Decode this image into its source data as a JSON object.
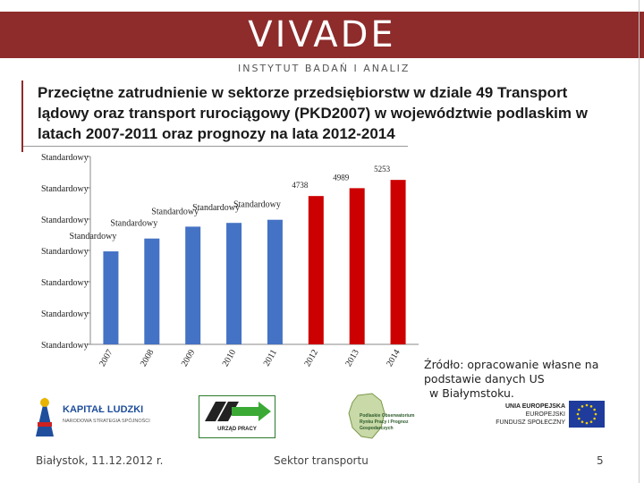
{
  "header": {
    "brand": "VIVADE",
    "tagline": "INSTYTUT BADAŃ I ANALIZ"
  },
  "slide_title": "Przeciętne zatrudnienie w sektorze przedsiębiorstw w dziale 49 Transport lądowy oraz transport rurociągowy (PKD2007) w województwie podlaskim w latach 2007-2011 oraz prognozy na lata 2012-2014",
  "chart_data": {
    "type": "bar",
    "categories": [
      "2007",
      "2008",
      "2009",
      "2010",
      "2011",
      "2012",
      "2013",
      "2014"
    ],
    "values": [
      2970,
      3380,
      3760,
      3880,
      3980,
      4738,
      4989,
      5253
    ],
    "data_labels": [
      "Standardowy",
      "Standardowy",
      "Standardowy",
      "Standardowy",
      "Standardowy",
      "4738",
      "4989",
      "5253"
    ],
    "y_tick_labels": [
      "Standardowy",
      "Standardowy",
      "Standardowy",
      "Standardowy",
      "Standardowy",
      "Standardowy",
      "Standardowy"
    ],
    "ylim": [
      0,
      6000
    ],
    "series_colors": [
      "#4472c4",
      "#4472c4",
      "#4472c4",
      "#4472c4",
      "#4472c4",
      "#cc0000",
      "#cc0000",
      "#cc0000"
    ],
    "title": "",
    "xlabel": "",
    "ylabel": ""
  },
  "source": {
    "line1": "Źródło: opracowanie własne na",
    "line2": "podstawie danych US",
    "line3": "w Białymstoku."
  },
  "logos": {
    "kapital_title": "KAPITAŁ LUDZKI",
    "kapital_sub": "NARODOWA STRATEGIA SPÓJNOŚCI",
    "urzad": "URZĄD PRACY",
    "obs_line1": "Podlaskie Obserwatorium",
    "obs_line2": "Rynku Pracy i Prognoz Gospodarczych",
    "ue_line1": "UNIA EUROPEJSKA",
    "ue_line2": "EUROPEJSKI",
    "ue_line3": "FUNDUSZ SPOŁECZNY"
  },
  "footer": {
    "date": "Białystok, 11.12.2012 r.",
    "section": "Sektor transportu",
    "page": "5"
  },
  "colors": {
    "brand": "#8e2b2b",
    "historical_bar": "#4472c4",
    "forecast_bar": "#cc0000"
  }
}
